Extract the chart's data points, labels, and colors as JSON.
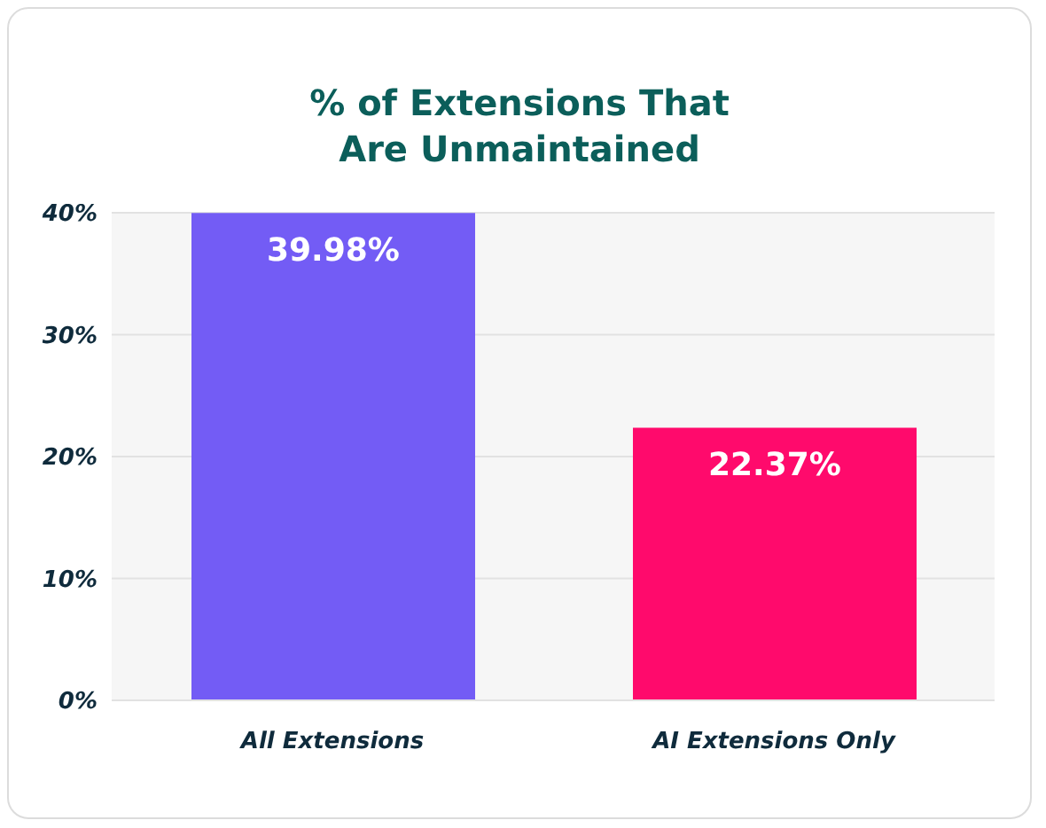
{
  "chart_data": {
    "type": "bar",
    "title": "% of Extensions That\nAre Unmaintained",
    "categories": [
      "All Extensions",
      "AI Extensions Only"
    ],
    "values": [
      39.98,
      22.37
    ],
    "colors": [
      "#735cf5",
      "#ff0a6c"
    ],
    "value_labels": [
      "39.98%",
      "22.37%"
    ],
    "ylim": [
      0,
      40
    ],
    "yticks": [
      {
        "value": 0,
        "label": "0%"
      },
      {
        "value": 10,
        "label": "10%"
      },
      {
        "value": 20,
        "label": "20%"
      },
      {
        "value": 30,
        "label": "30%"
      },
      {
        "value": 40,
        "label": "40%"
      }
    ],
    "grid": "y",
    "legend": false
  }
}
